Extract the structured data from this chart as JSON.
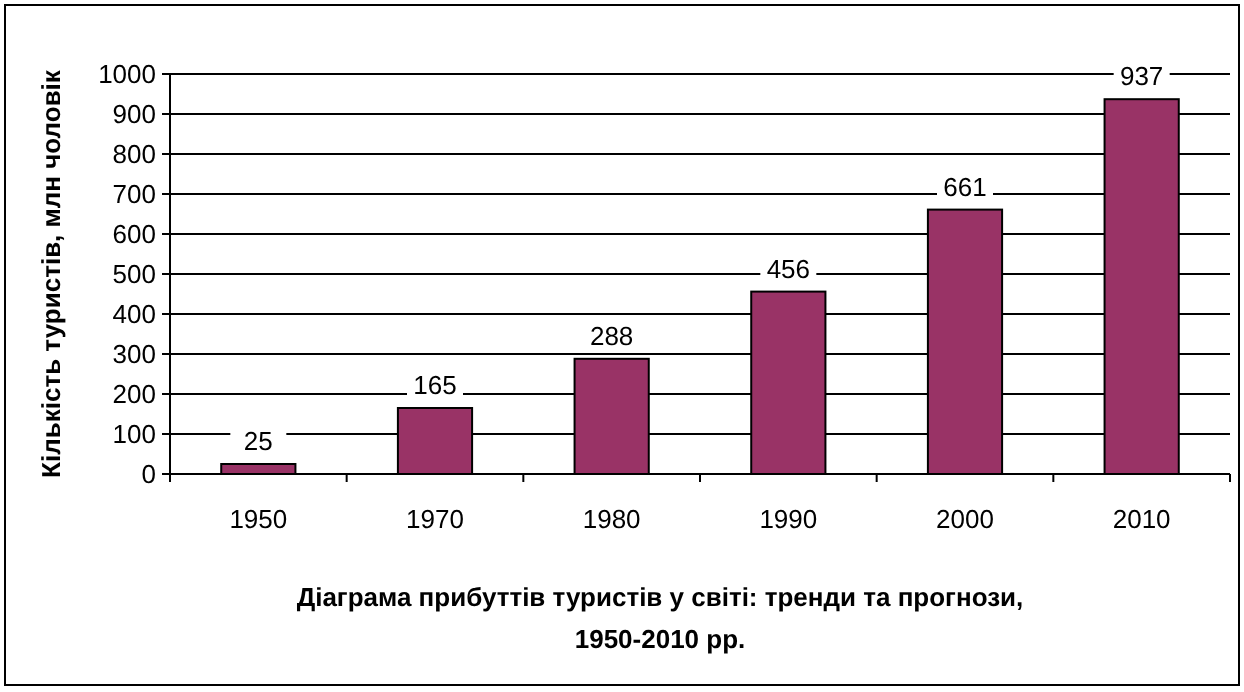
{
  "chart_data": {
    "type": "bar",
    "title": "Діаграма прибуттів туристів у світі: тренди та прогнози, 1950-2010 рр.",
    "ylabel": "Кількість туристів, млн чоловік",
    "categories": [
      "1950",
      "1970",
      "1980",
      "1990",
      "2000",
      "2010"
    ],
    "values": [
      25,
      165,
      288,
      456,
      661,
      937
    ],
    "color": "#993366",
    "ylim": [
      0,
      1000
    ],
    "yticks": [
      0,
      100,
      200,
      300,
      400,
      500,
      600,
      700,
      800,
      900,
      1000
    ],
    "grid": "y",
    "data_labels": true
  }
}
